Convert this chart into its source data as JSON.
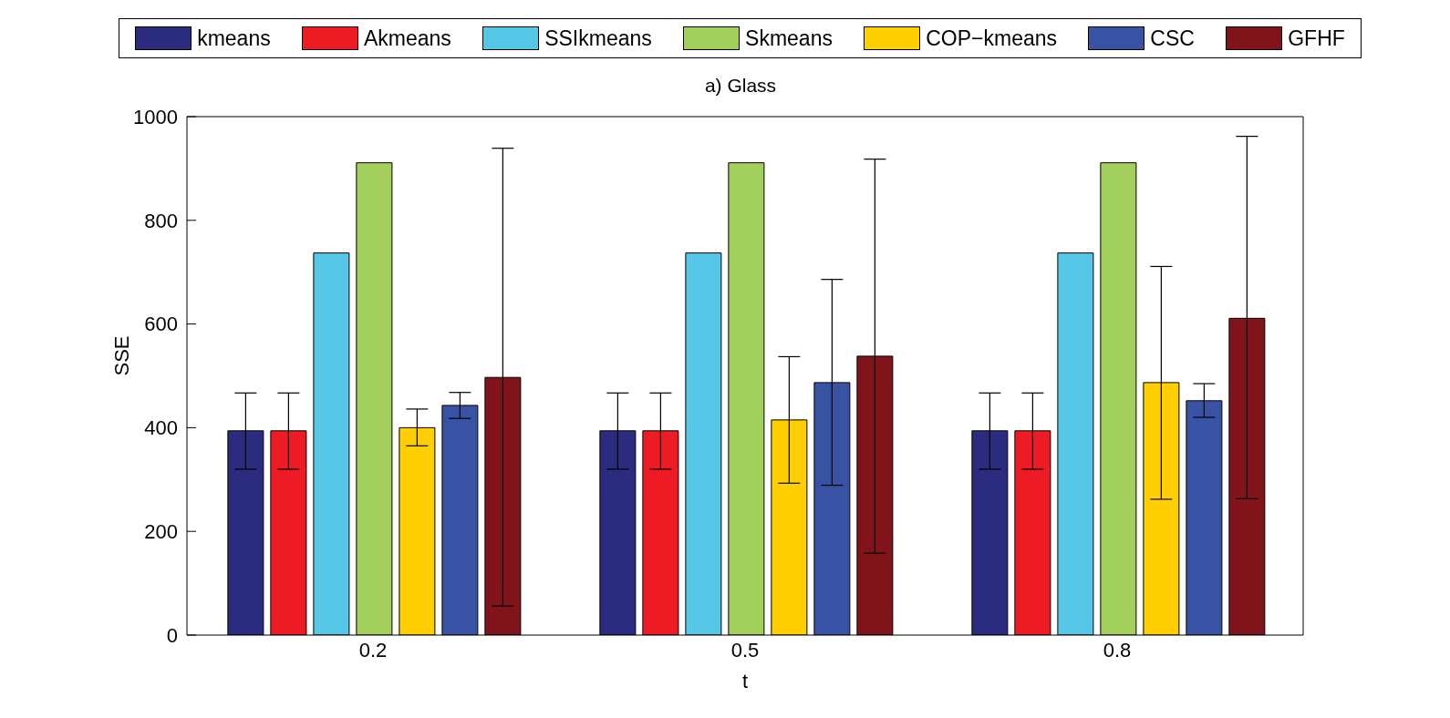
{
  "chart_data": {
    "type": "bar",
    "title": "a) Glass",
    "xlabel": "t",
    "ylabel": "SSE",
    "categories": [
      "0.2",
      "0.5",
      "0.8"
    ],
    "series": [
      {
        "name": "kmeans",
        "color": "#2b2c7f",
        "values": [
          394,
          394,
          394
        ],
        "errors": [
          [
            320,
            467
          ],
          [
            320,
            467
          ],
          [
            320,
            467
          ]
        ]
      },
      {
        "name": "Akmeans",
        "color": "#ed1c24",
        "values": [
          394,
          394,
          394
        ],
        "errors": [
          [
            320,
            467
          ],
          [
            320,
            467
          ],
          [
            320,
            467
          ]
        ]
      },
      {
        "name": "SSIkmeans",
        "color": "#56c7e6",
        "values": [
          737,
          737,
          737
        ]
      },
      {
        "name": "Skmeans",
        "color": "#a3cf5d",
        "values": [
          911,
          911,
          911
        ]
      },
      {
        "name": "COP−kmeans",
        "color": "#ffcf01",
        "values": [
          400,
          415,
          487
        ],
        "errors": [
          [
            365,
            436
          ],
          [
            293,
            537
          ],
          [
            262,
            711
          ]
        ]
      },
      {
        "name": "CSC",
        "color": "#3953a4",
        "values": [
          443,
          487,
          452
        ],
        "errors": [
          [
            418,
            468
          ],
          [
            289,
            686
          ],
          [
            420,
            485
          ]
        ]
      },
      {
        "name": "GFHF",
        "color": "#80141a",
        "values": [
          497,
          538,
          611
        ],
        "errors": [
          [
            56,
            939
          ],
          [
            158,
            918
          ],
          [
            263,
            962
          ]
        ]
      }
    ],
    "ylim": [
      0,
      1000
    ],
    "yticks": [
      0,
      200,
      400,
      600,
      800,
      1000
    ],
    "grid": false,
    "legend": "top"
  }
}
